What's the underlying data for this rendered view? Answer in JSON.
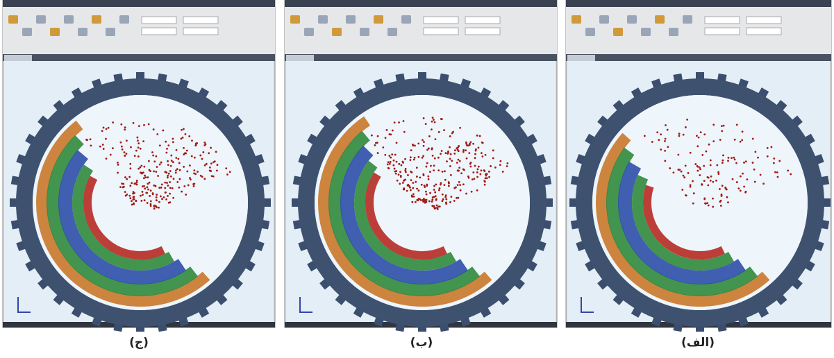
{
  "captions": [
    "(ج)",
    "(ب)",
    "(الف)"
  ]
}
